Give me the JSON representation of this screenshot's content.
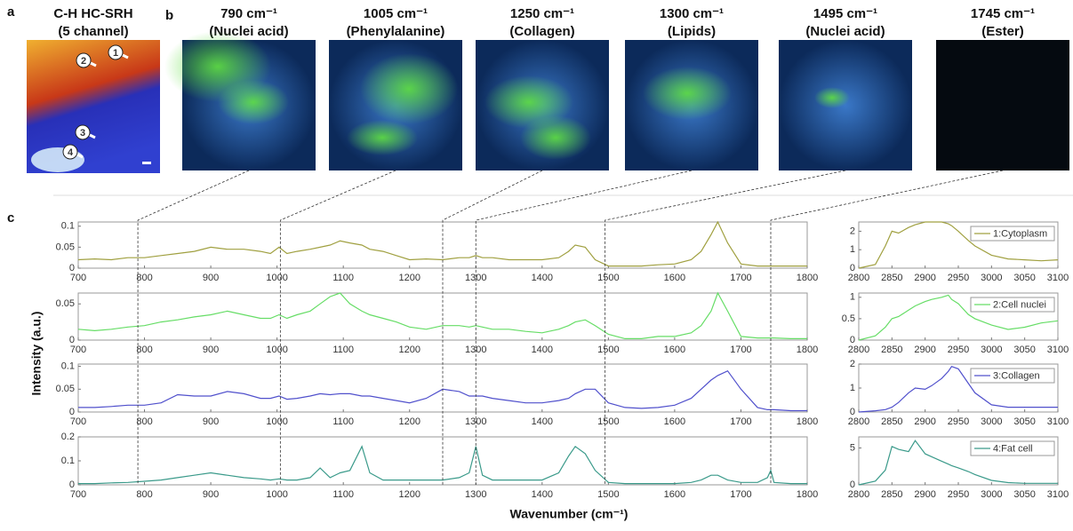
{
  "figure": {
    "panel_labels": [
      "a",
      "b",
      "c"
    ],
    "xlabel": "Wavenumber (cm⁻¹)",
    "ylabel": "Intensity (a.u.)",
    "panel_a": {
      "title": [
        "C-H HC-SRH",
        "(5 channel)"
      ],
      "markers": [
        "1",
        "2",
        "3",
        "4"
      ]
    },
    "panel_b": [
      {
        "title": "790 cm⁻¹",
        "subtitle": "(Nuclei acid)",
        "wavenumber": 790
      },
      {
        "title": "1005 cm⁻¹",
        "subtitle": "(Phenylalanine)",
        "wavenumber": 1005
      },
      {
        "title": "1250 cm⁻¹",
        "subtitle": "(Collagen)",
        "wavenumber": 1250
      },
      {
        "title": "1300 cm⁻¹",
        "subtitle": "(Lipids)",
        "wavenumber": 1300
      },
      {
        "title": "1495 cm⁻¹",
        "subtitle": "(Nuclei acid)",
        "wavenumber": 1495
      },
      {
        "title": "1745 cm⁻¹",
        "subtitle": "(Ester)",
        "wavenumber": 1745
      }
    ]
  },
  "chart_data": [
    {
      "type": "line",
      "xlim": [
        700,
        1800
      ],
      "ylim": [
        0,
        0.11
      ],
      "xticks": [
        700,
        800,
        900,
        1000,
        1100,
        1200,
        1300,
        1400,
        1500,
        1600,
        1700,
        1800
      ],
      "yticks": [
        0,
        0.05,
        0.1
      ],
      "x": [
        700,
        725,
        750,
        775,
        800,
        825,
        850,
        875,
        900,
        925,
        950,
        975,
        990,
        1003,
        1015,
        1030,
        1050,
        1065,
        1080,
        1095,
        1110,
        1128,
        1140,
        1160,
        1180,
        1200,
        1225,
        1250,
        1275,
        1290,
        1300,
        1310,
        1325,
        1350,
        1375,
        1400,
        1425,
        1440,
        1450,
        1465,
        1480,
        1500,
        1525,
        1550,
        1575,
        1600,
        1625,
        1640,
        1655,
        1665,
        1680,
        1700,
        1725,
        1740,
        1745,
        1750,
        1775,
        1800
      ],
      "series": [
        {
          "color": "#a0a040",
          "values": [
            0.02,
            0.022,
            0.02,
            0.025,
            0.025,
            0.03,
            0.035,
            0.04,
            0.05,
            0.045,
            0.045,
            0.04,
            0.035,
            0.05,
            0.035,
            0.04,
            0.045,
            0.05,
            0.055,
            0.065,
            0.06,
            0.055,
            0.045,
            0.04,
            0.03,
            0.02,
            0.022,
            0.02,
            0.025,
            0.025,
            0.03,
            0.025,
            0.025,
            0.02,
            0.02,
            0.02,
            0.025,
            0.04,
            0.055,
            0.05,
            0.02,
            0.005,
            0.005,
            0.005,
            0.008,
            0.01,
            0.02,
            0.04,
            0.08,
            0.11,
            0.06,
            0.01,
            0.005,
            0.005,
            0.005,
            0.005,
            0.005,
            0.005
          ]
        }
      ]
    },
    {
      "type": "line",
      "xlim": [
        700,
        1800
      ],
      "ylim": [
        0,
        0.065
      ],
      "xticks": [
        700,
        800,
        900,
        1000,
        1100,
        1200,
        1300,
        1400,
        1500,
        1600,
        1700,
        1800
      ],
      "yticks": [
        0,
        0.05
      ],
      "x": [
        700,
        725,
        750,
        775,
        800,
        825,
        850,
        875,
        900,
        925,
        950,
        975,
        990,
        1003,
        1015,
        1030,
        1050,
        1065,
        1080,
        1095,
        1110,
        1128,
        1140,
        1160,
        1180,
        1200,
        1225,
        1250,
        1275,
        1290,
        1300,
        1310,
        1325,
        1350,
        1375,
        1400,
        1425,
        1440,
        1450,
        1465,
        1480,
        1500,
        1525,
        1550,
        1575,
        1600,
        1625,
        1640,
        1655,
        1665,
        1680,
        1700,
        1725,
        1740,
        1745,
        1750,
        1775,
        1800
      ],
      "series": [
        {
          "color": "#66dd66",
          "values": [
            0.015,
            0.013,
            0.015,
            0.018,
            0.02,
            0.025,
            0.028,
            0.032,
            0.035,
            0.04,
            0.035,
            0.03,
            0.03,
            0.035,
            0.03,
            0.035,
            0.04,
            0.05,
            0.06,
            0.065,
            0.05,
            0.04,
            0.035,
            0.03,
            0.025,
            0.018,
            0.015,
            0.02,
            0.02,
            0.018,
            0.02,
            0.018,
            0.015,
            0.015,
            0.012,
            0.01,
            0.015,
            0.02,
            0.025,
            0.028,
            0.02,
            0.008,
            0.002,
            0.002,
            0.005,
            0.005,
            0.01,
            0.02,
            0.04,
            0.065,
            0.04,
            0.005,
            0.003,
            0.003,
            0.003,
            0.003,
            0.002,
            0.002
          ]
        }
      ]
    },
    {
      "type": "line",
      "xlim": [
        700,
        1800
      ],
      "ylim": [
        0,
        0.105
      ],
      "xticks": [
        700,
        800,
        900,
        1000,
        1100,
        1200,
        1300,
        1400,
        1500,
        1600,
        1700,
        1800
      ],
      "yticks": [
        0,
        0.05,
        0.1
      ],
      "x": [
        700,
        725,
        750,
        775,
        800,
        825,
        850,
        875,
        900,
        925,
        950,
        975,
        990,
        1003,
        1015,
        1030,
        1050,
        1065,
        1080,
        1095,
        1110,
        1128,
        1140,
        1160,
        1180,
        1200,
        1225,
        1250,
        1275,
        1290,
        1300,
        1310,
        1325,
        1350,
        1375,
        1400,
        1425,
        1440,
        1450,
        1465,
        1480,
        1500,
        1525,
        1550,
        1575,
        1600,
        1625,
        1640,
        1655,
        1665,
        1680,
        1700,
        1725,
        1740,
        1745,
        1750,
        1775,
        1800
      ],
      "series": [
        {
          "color": "#5050cc",
          "values": [
            0.01,
            0.01,
            0.012,
            0.015,
            0.015,
            0.02,
            0.038,
            0.035,
            0.035,
            0.045,
            0.04,
            0.03,
            0.03,
            0.035,
            0.028,
            0.03,
            0.035,
            0.04,
            0.038,
            0.04,
            0.04,
            0.035,
            0.035,
            0.03,
            0.025,
            0.02,
            0.03,
            0.05,
            0.045,
            0.035,
            0.035,
            0.035,
            0.03,
            0.025,
            0.02,
            0.02,
            0.025,
            0.03,
            0.04,
            0.05,
            0.05,
            0.02,
            0.01,
            0.008,
            0.01,
            0.015,
            0.03,
            0.05,
            0.07,
            0.08,
            0.09,
            0.05,
            0.01,
            0.005,
            0.005,
            0.005,
            0.003,
            0.003
          ]
        }
      ]
    },
    {
      "type": "line",
      "xlim": [
        700,
        1800
      ],
      "ylim": [
        0,
        0.2
      ],
      "xticks": [
        700,
        800,
        900,
        1000,
        1100,
        1200,
        1300,
        1400,
        1500,
        1600,
        1700,
        1800
      ],
      "yticks": [
        0,
        0.1,
        0.2
      ],
      "x": [
        700,
        725,
        750,
        775,
        800,
        825,
        850,
        875,
        900,
        925,
        950,
        975,
        990,
        1003,
        1015,
        1030,
        1050,
        1065,
        1080,
        1095,
        1110,
        1128,
        1140,
        1160,
        1180,
        1200,
        1225,
        1250,
        1275,
        1290,
        1300,
        1310,
        1325,
        1350,
        1375,
        1400,
        1425,
        1440,
        1450,
        1465,
        1480,
        1500,
        1525,
        1550,
        1575,
        1600,
        1625,
        1640,
        1655,
        1665,
        1680,
        1700,
        1725,
        1740,
        1745,
        1750,
        1775,
        1800
      ],
      "series": [
        {
          "color": "#3a9a8a",
          "values": [
            0.005,
            0.005,
            0.008,
            0.01,
            0.015,
            0.02,
            0.03,
            0.04,
            0.05,
            0.04,
            0.03,
            0.025,
            0.02,
            0.025,
            0.02,
            0.02,
            0.03,
            0.07,
            0.03,
            0.05,
            0.06,
            0.16,
            0.05,
            0.02,
            0.02,
            0.02,
            0.02,
            0.02,
            0.03,
            0.05,
            0.16,
            0.04,
            0.02,
            0.02,
            0.02,
            0.02,
            0.05,
            0.12,
            0.16,
            0.13,
            0.06,
            0.01,
            0.005,
            0.005,
            0.005,
            0.005,
            0.01,
            0.02,
            0.04,
            0.04,
            0.02,
            0.01,
            0.01,
            0.03,
            0.06,
            0.01,
            0.005,
            0.005
          ]
        }
      ]
    },
    {
      "type": "line",
      "xlim": [
        2800,
        3100
      ],
      "ylim": [
        0,
        2.5
      ],
      "xticks": [
        2800,
        2850,
        2900,
        2950,
        3000,
        3050,
        3100
      ],
      "yticks": [
        0,
        1,
        2
      ],
      "legend": "upper right",
      "x": [
        2800,
        2825,
        2840,
        2850,
        2860,
        2875,
        2885,
        2900,
        2910,
        2925,
        2935,
        2940,
        2950,
        2965,
        2975,
        3000,
        3025,
        3050,
        3075,
        3100
      ],
      "series": [
        {
          "name": "1:Cytoplasm",
          "color": "#a0a040",
          "values": [
            0,
            0.2,
            1.2,
            2.0,
            1.9,
            2.2,
            2.35,
            2.5,
            2.5,
            2.5,
            2.4,
            2.3,
            2.0,
            1.5,
            1.2,
            0.7,
            0.5,
            0.45,
            0.4,
            0.45
          ]
        }
      ]
    },
    {
      "type": "line",
      "xlim": [
        2800,
        3100
      ],
      "ylim": [
        0,
        1.1
      ],
      "xticks": [
        2800,
        2850,
        2900,
        2950,
        3000,
        3050,
        3100
      ],
      "yticks": [
        0,
        0.5,
        1
      ],
      "legend": "upper right",
      "x": [
        2800,
        2825,
        2840,
        2850,
        2860,
        2875,
        2885,
        2900,
        2910,
        2925,
        2935,
        2940,
        2950,
        2965,
        2975,
        3000,
        3025,
        3050,
        3075,
        3100
      ],
      "series": [
        {
          "name": "2:Cell nuclei",
          "color": "#66dd66",
          "values": [
            0,
            0.1,
            0.3,
            0.5,
            0.55,
            0.7,
            0.8,
            0.9,
            0.95,
            1.0,
            1.05,
            0.95,
            0.85,
            0.6,
            0.5,
            0.35,
            0.25,
            0.3,
            0.4,
            0.45
          ]
        }
      ]
    },
    {
      "type": "line",
      "xlim": [
        2800,
        3100
      ],
      "ylim": [
        0,
        2
      ],
      "xticks": [
        2800,
        2850,
        2900,
        2950,
        3000,
        3050,
        3100
      ],
      "yticks": [
        0,
        1,
        2
      ],
      "legend": "upper right",
      "x": [
        2800,
        2825,
        2840,
        2850,
        2860,
        2875,
        2885,
        2900,
        2910,
        2925,
        2935,
        2940,
        2950,
        2965,
        2975,
        3000,
        3025,
        3050,
        3075,
        3100
      ],
      "series": [
        {
          "name": "3:Collagen",
          "color": "#5050cc",
          "values": [
            0,
            0.05,
            0.1,
            0.2,
            0.4,
            0.8,
            1.0,
            0.95,
            1.1,
            1.4,
            1.7,
            1.9,
            1.8,
            1.2,
            0.8,
            0.3,
            0.2,
            0.2,
            0.2,
            0.2
          ]
        }
      ]
    },
    {
      "type": "line",
      "xlim": [
        2800,
        3100
      ],
      "ylim": [
        0,
        6.5
      ],
      "xticks": [
        2800,
        2850,
        2900,
        2950,
        3000,
        3050,
        3100
      ],
      "yticks": [
        0,
        5
      ],
      "legend": "upper right",
      "x": [
        2800,
        2825,
        2840,
        2850,
        2860,
        2875,
        2885,
        2900,
        2910,
        2925,
        2935,
        2940,
        2950,
        2965,
        2975,
        3000,
        3025,
        3050,
        3075,
        3100
      ],
      "series": [
        {
          "name": "4:Fat cell",
          "color": "#3a9a8a",
          "values": [
            0,
            0.5,
            2,
            5.2,
            4.8,
            4.5,
            6.0,
            4.2,
            3.8,
            3.2,
            2.8,
            2.6,
            2.3,
            1.8,
            1.4,
            0.6,
            0.3,
            0.2,
            0.2,
            0.2
          ]
        }
      ]
    }
  ]
}
